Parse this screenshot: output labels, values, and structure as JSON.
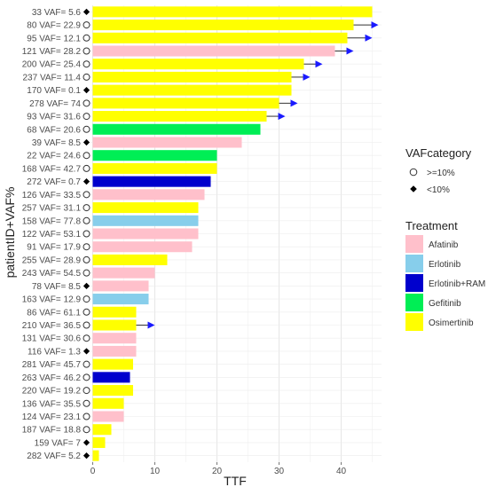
{
  "chart_data": {
    "type": "bar",
    "orientation": "horizontal",
    "title": "",
    "xlabel": "TTF",
    "ylabel": "patientID+VAF%",
    "xlim": [
      -1.5,
      46.5
    ],
    "x_ticks": [
      0,
      10,
      20,
      30,
      40
    ],
    "grid": true,
    "background": "#ffffff",
    "arrow_color": "#1a1aff",
    "categories": [
      "33 VAF= 5.6",
      "80 VAF= 22.9",
      "95 VAF= 12.1",
      "121 VAF= 28.2",
      "200 VAF= 25.4",
      "237 VAF= 11.4",
      "170 VAF= 0.1",
      "278 VAF= 74",
      "93 VAF= 31.6",
      "68 VAF= 20.6",
      "39 VAF= 8.5",
      "22 VAF= 24.6",
      "168 VAF= 42.7",
      "272 VAF= 0.7",
      "126 VAF= 33.5",
      "257 VAF= 31.1",
      "158 VAF= 77.8",
      "122 VAF= 53.1",
      "91 VAF= 17.9",
      "255 VAF= 28.9",
      "243 VAF= 54.5",
      "78 VAF= 8.5",
      "163 VAF= 12.9",
      "86 VAF= 61.1",
      "210 VAF= 36.5",
      "131 VAF= 30.6",
      "116 VAF= 1.3",
      "281 VAF= 45.7",
      "263 VAF= 46.2",
      "220 VAF= 19.2",
      "136 VAF= 35.5",
      "124 VAF= 23.1",
      "187 VAF= 18.8",
      "159 VAF= 7",
      "282 VAF= 5.2"
    ],
    "values": [
      45,
      42,
      41,
      39,
      34,
      32,
      32,
      30,
      28,
      27,
      24,
      20,
      20,
      19,
      18,
      17,
      17,
      17,
      16,
      12,
      10,
      9,
      9,
      7,
      7,
      7,
      7,
      6.5,
      6,
      6.5,
      5,
      5,
      3,
      2,
      1
    ],
    "treatment": [
      "Osimertinib",
      "Osimertinib",
      "Osimertinib",
      "Afatinib",
      "Osimertinib",
      "Osimertinib",
      "Osimertinib",
      "Osimertinib",
      "Osimertinib",
      "Gefitinib",
      "Afatinib",
      "Gefitinib",
      "Osimertinib",
      "Erlotinib+RAM",
      "Afatinib",
      "Osimertinib",
      "Erlotinib",
      "Afatinib",
      "Afatinib",
      "Osimertinib",
      "Afatinib",
      "Afatinib",
      "Erlotinib",
      "Osimertinib",
      "Osimertinib",
      "Afatinib",
      "Afatinib",
      "Osimertinib",
      "Erlotinib+RAM",
      "Osimertinib",
      "Osimertinib",
      "Afatinib",
      "Osimertinib",
      "Osimertinib",
      "Osimertinib"
    ],
    "vaf_category": [
      "<10%",
      ">=10%",
      ">=10%",
      ">=10%",
      ">=10%",
      ">=10%",
      "<10%",
      ">=10%",
      ">=10%",
      ">=10%",
      "<10%",
      ">=10%",
      ">=10%",
      "<10%",
      ">=10%",
      ">=10%",
      ">=10%",
      ">=10%",
      ">=10%",
      ">=10%",
      ">=10%",
      "<10%",
      ">=10%",
      ">=10%",
      ">=10%",
      ">=10%",
      "<10%",
      ">=10%",
      ">=10%",
      ">=10%",
      ">=10%",
      ">=10%",
      ">=10%",
      "<10%",
      "<10%"
    ],
    "ongoing_arrow_end": {
      "80 VAF= 22.9": 46,
      "95 VAF= 12.1": 45,
      "121 VAF= 28.2": 42,
      "200 VAF= 25.4": 37,
      "237 VAF= 11.4": 35,
      "278 VAF= 74": 33,
      "93 VAF= 31.6": 31,
      "210 VAF= 36.5": 10
    },
    "treatment_colors": {
      "Afatinib": "#ffc0cb",
      "Erlotinib": "#87ceeb",
      "Erlotinib+RAM": "#0000cd",
      "Gefitinib": "#00ee55",
      "Osimertinib": "#ffff00"
    },
    "legend_placement": "right",
    "legends": [
      {
        "title": "VAFcategory",
        "items": [
          {
            "label": ">=10%",
            "shape": "circle-open"
          },
          {
            "label": "<10%",
            "shape": "diamond-filled"
          }
        ]
      },
      {
        "title": "Treatment",
        "items": [
          {
            "label": "Afatinib",
            "color": "#ffc0cb"
          },
          {
            "label": "Erlotinib",
            "color": "#87ceeb"
          },
          {
            "label": "Erlotinib+RAM",
            "color": "#0000cd"
          },
          {
            "label": "Gefitinib",
            "color": "#00ee55"
          },
          {
            "label": "Osimertinib",
            "color": "#ffff00"
          }
        ]
      }
    ]
  }
}
